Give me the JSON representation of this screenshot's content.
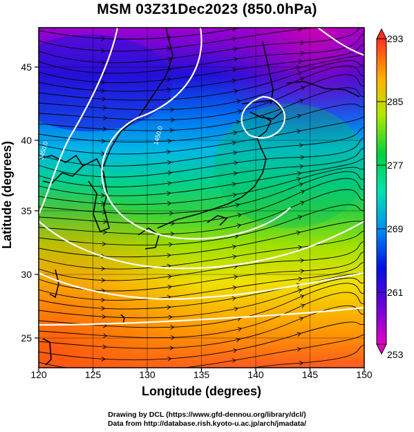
{
  "title": "MSM 03Z31Dec2023 (850.0hPa)",
  "x_axis": {
    "label": "Longitude (degrees)",
    "ticks": [
      "120",
      "125",
      "130",
      "135",
      "140",
      "145",
      "150"
    ]
  },
  "y_axis": {
    "label": "Latitude  (degrees)",
    "ticks": [
      "25",
      "30",
      "35",
      "40",
      "45"
    ]
  },
  "colorbar": {
    "ticks": [
      "293",
      "285",
      "277",
      "269",
      "261",
      "253"
    ],
    "min": 253,
    "max": 293
  },
  "contour_labels": [
    "1450.0",
    "1450.0"
  ],
  "credits": {
    "line1": "Drawing by DCL (https://www.gfd-dennou.org/library/dcl/)",
    "line2": "Data from http://database.rish.kyoto-u.ac.jp/arch/jmadata/"
  },
  "chart_data": {
    "type": "heatmap",
    "title": "MSM 03Z31Dec2023 (850.0hPa)",
    "xlabel": "Longitude (degrees)",
    "ylabel": "Latitude  (degrees)",
    "xlim": [
      120,
      150
    ],
    "ylim": [
      22.4,
      47.6
    ],
    "colorbar_range": [
      253,
      293
    ],
    "colorbar_ticks": [
      253,
      261,
      269,
      277,
      285,
      293
    ],
    "grid": true,
    "overlays": [
      "streamlines",
      "geopotential height contours (white)",
      "coastlines"
    ]
  },
  "colors": {
    "scale": [
      "#c000c0",
      "#5a00d8",
      "#0028e0",
      "#00a0f0",
      "#00e0c0",
      "#00d050",
      "#80e000",
      "#e8f000",
      "#ffb000",
      "#ff5020"
    ],
    "contour": "#ffffff",
    "streamline": "#000000"
  }
}
